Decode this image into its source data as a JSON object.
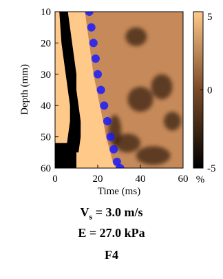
{
  "chart_data": {
    "type": "heatmap",
    "title": "",
    "xlabel": "Time (ms)",
    "ylabel": "Depth (mm)",
    "xlim": [
      0,
      60
    ],
    "ylim": [
      60,
      10
    ],
    "xticks": [
      0,
      20,
      40,
      60
    ],
    "yticks": [
      10,
      20,
      30,
      40,
      50,
      60
    ],
    "colorbar": {
      "range": [
        -5,
        5
      ],
      "ticks": [
        5,
        0,
        -5
      ],
      "unit": "%",
      "colormap": "copper",
      "colors": [
        "#000000",
        "#7a4a28",
        "#ffc98a"
      ]
    },
    "overlay": {
      "type": "scatter",
      "color": "#1a1aff",
      "x": [
        16,
        17,
        18,
        19,
        20,
        21.5,
        23,
        24.5,
        26,
        27.5,
        29,
        30.5
      ],
      "y": [
        10,
        15,
        20,
        25,
        30,
        35,
        40,
        45,
        50,
        54,
        58,
        60
      ]
    },
    "dark_regions": [
      {
        "name": "left dark band",
        "x_start": [
          2,
          2.5,
          3,
          4,
          5,
          6,
          7,
          7,
          6,
          5
        ],
        "x_end": [
          6,
          7,
          8,
          9,
          10,
          10,
          11,
          12,
          12,
          11
        ],
        "y": [
          10,
          15,
          20,
          25,
          30,
          35,
          40,
          45,
          50,
          55
        ]
      }
    ]
  },
  "caption": {
    "vs_label": "V",
    "vs_sub": "s",
    "vs_value": " = 3.0 m/s",
    "e_text": "E = 27.0 kPa",
    "panel": "F4"
  }
}
